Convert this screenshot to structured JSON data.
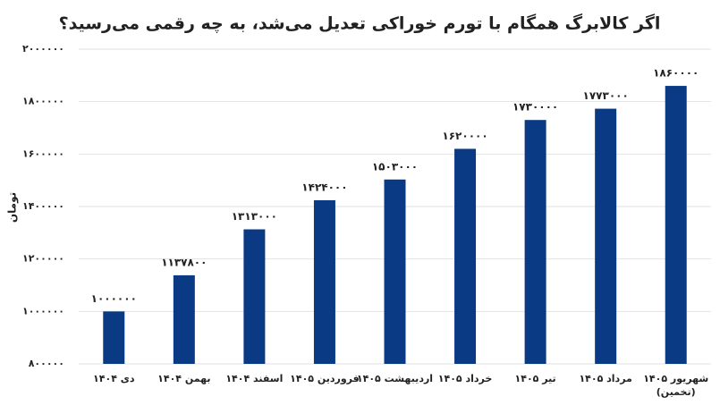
{
  "chart_data": {
    "type": "bar",
    "title": "اگر کالابرگ همگام با تورم خوراکی تعدیل می‌شد، به چه رقمی می‌رسید؟",
    "y_label": "تومان",
    "categories": [
      "دی ۱۴۰۴",
      "بهمن ۱۴۰۴",
      "اسفند ۱۴۰۴",
      "فروردین ۱۴۰۵",
      "اردیبهشت ۱۴۰۵",
      "خرداد ۱۴۰۵",
      "تیر ۱۴۰۵",
      "مرداد ۱۴۰۵",
      "شهریور ۱۴۰۵\n(تخمین)"
    ],
    "values": [
      1000000,
      1137800,
      1313000,
      1424000,
      1503000,
      1620000,
      1730000,
      1773000,
      1860000
    ],
    "value_labels": [
      "۱۰۰۰۰۰۰",
      "۱۱۳۷۸۰۰",
      "۱۳۱۳۰۰۰",
      "۱۴۲۴۰۰۰",
      "۱۵۰۳۰۰۰",
      "۱۶۲۰۰۰۰",
      "۱۷۳۰۰۰۰",
      "۱۷۷۳۰۰۰",
      "۱۸۶۰۰۰۰"
    ],
    "color": "#0b3a84",
    "ylim": [
      800000,
      2000000
    ],
    "yticks": [
      {
        "value": 800000,
        "label": "۸۰۰۰۰۰"
      },
      {
        "value": 1000000,
        "label": "۱۰۰۰۰۰۰"
      },
      {
        "value": 1200000,
        "label": "۱۲۰۰۰۰۰"
      },
      {
        "value": 1400000,
        "label": "۱۴۰۰۰۰۰"
      },
      {
        "value": 1600000,
        "label": "۱۶۰۰۰۰۰"
      },
      {
        "value": 1800000,
        "label": "۱۸۰۰۰۰۰"
      },
      {
        "value": 2000000,
        "label": "۲۰۰۰۰۰۰"
      }
    ],
    "grid": true
  }
}
